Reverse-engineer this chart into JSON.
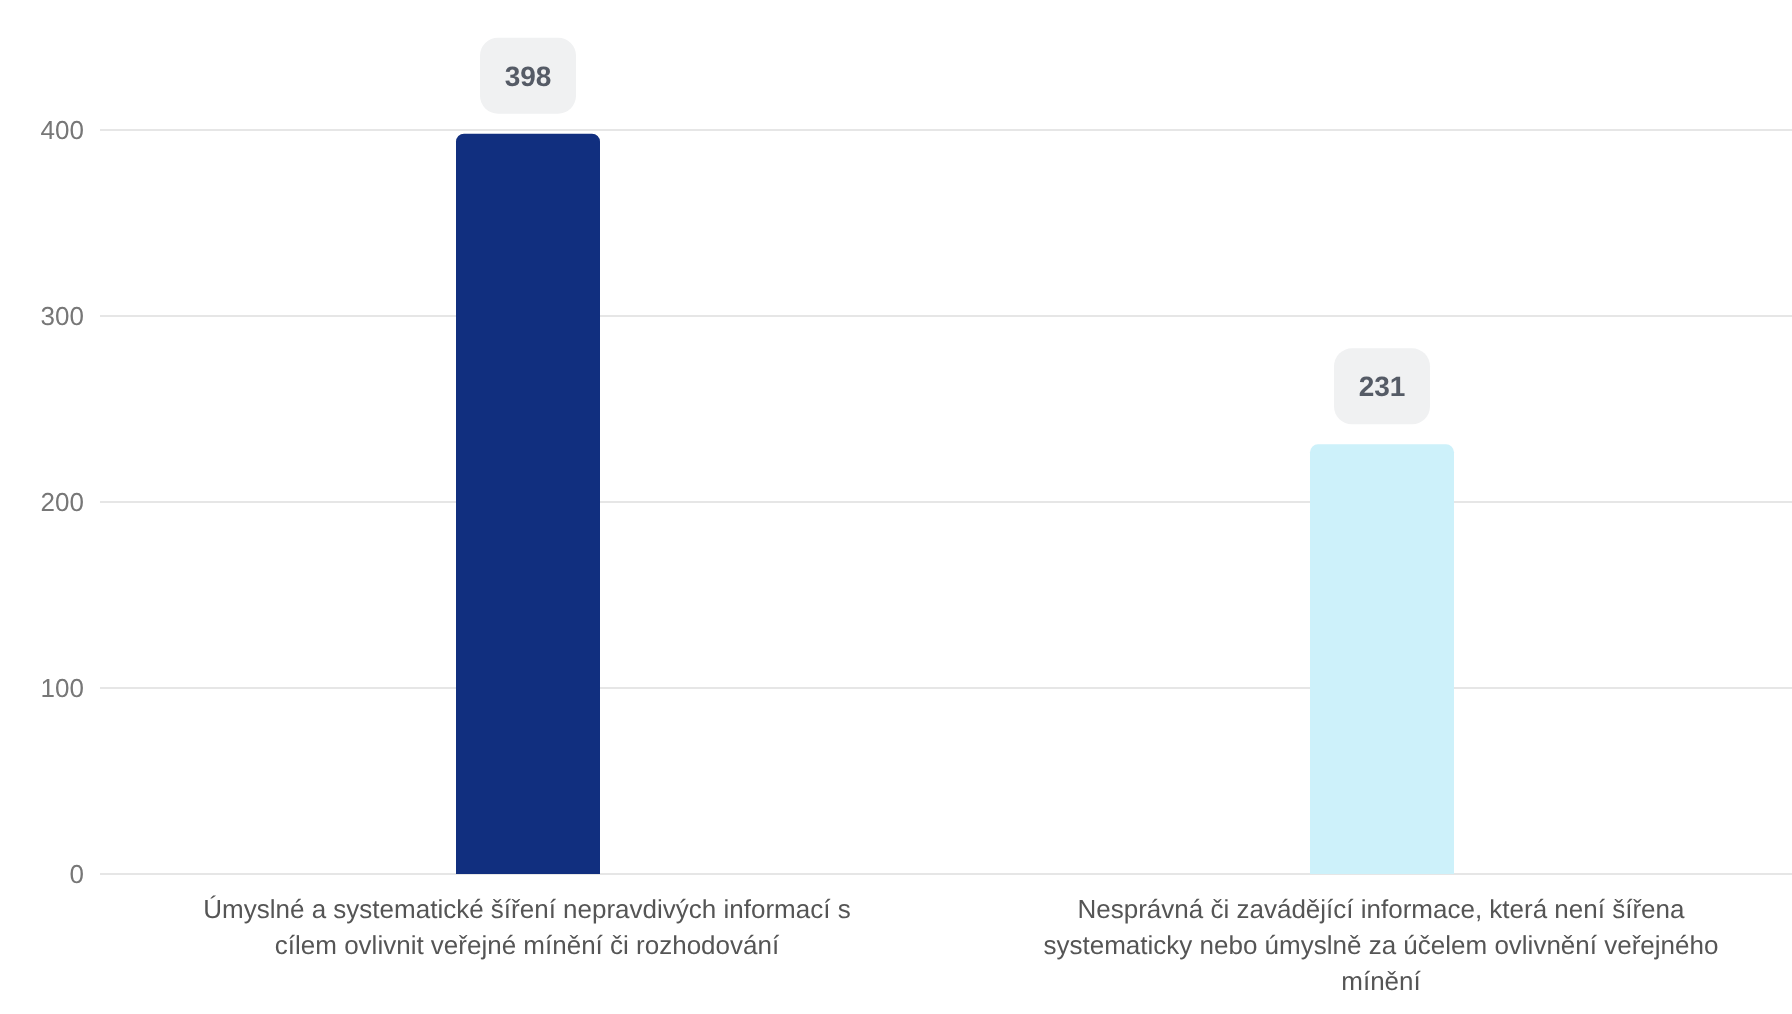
{
  "chart_data": {
    "type": "bar",
    "categories": [
      "Úmyslné a systematické šíření nepravdivých informací s cílem ovlivnit veřejné mínění či rozhodování",
      "Nesprávná či zavádějící informace, která není šířena systematicky nebo úmyslně za účelem ovlivnění veřejného mínění"
    ],
    "values": [
      398,
      231
    ],
    "colors": [
      "#112f7f",
      "#cdf1fa"
    ],
    "ylim": [
      0,
      400
    ],
    "yticks": [
      0,
      100,
      200,
      300,
      400
    ],
    "grid": "y",
    "data_labels": true,
    "legend": false
  }
}
